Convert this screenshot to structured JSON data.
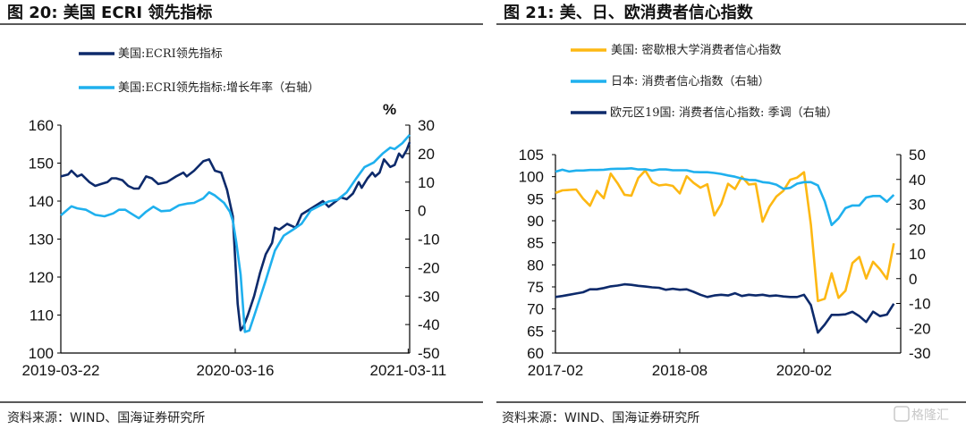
{
  "watermark": {
    "text": "格隆汇"
  },
  "chart_data": [
    {
      "type": "line",
      "title": "图 20:  美国 ECRI 领先指标",
      "source": "资料来源：WIND、国海证券研究所",
      "x_unit": "days since 2019-03-22",
      "xlim": [
        0,
        720
      ],
      "xticks": [
        {
          "x": 0,
          "label": "2019-03-22"
        },
        {
          "x": 360,
          "label": "2020-03-16"
        },
        {
          "x": 717,
          "label": "2021-03-11"
        }
      ],
      "ylim_left": [
        100,
        160
      ],
      "yticks_left": [
        "100",
        "110",
        "120",
        "130",
        "140",
        "150",
        "160"
      ],
      "ylim_right": [
        -50,
        30
      ],
      "yticks_right": [
        "-50",
        "-40",
        "-30",
        "-20",
        "-10",
        "0",
        "10",
        "20",
        "30"
      ],
      "right_axis_unit": "%",
      "legend_position": "top-left",
      "series": [
        {
          "name": "美国:ECRI领先指标",
          "axis": "left",
          "color": "#0d2a6b",
          "points": [
            [
              0,
              146.5
            ],
            [
              15,
              147
            ],
            [
              22,
              148
            ],
            [
              34,
              146.5
            ],
            [
              43,
              147
            ],
            [
              59,
              145
            ],
            [
              71,
              144
            ],
            [
              83,
              144.5
            ],
            [
              96,
              145
            ],
            [
              105,
              146
            ],
            [
              114,
              146
            ],
            [
              127,
              145.5
            ],
            [
              139,
              144
            ],
            [
              151,
              143.3
            ],
            [
              161,
              143.3
            ],
            [
              176,
              146.5
            ],
            [
              188,
              146
            ],
            [
              201,
              144.5
            ],
            [
              219,
              145
            ],
            [
              238,
              146.5
            ],
            [
              253,
              147.5
            ],
            [
              260,
              146.5
            ],
            [
              275,
              148
            ],
            [
              294,
              150.5
            ],
            [
              306,
              151
            ],
            [
              318,
              148
            ],
            [
              331,
              147.5
            ],
            [
              343,
              143
            ],
            [
              355,
              136
            ],
            [
              365,
              113
            ],
            [
              371,
              106
            ],
            [
              377,
              107
            ],
            [
              386,
              110
            ],
            [
              399,
              115
            ],
            [
              411,
              121
            ],
            [
              423,
              126
            ],
            [
              436,
              129
            ],
            [
              442,
              133
            ],
            [
              451,
              132.5
            ],
            [
              467,
              134
            ],
            [
              485,
              133
            ],
            [
              497,
              136.5
            ],
            [
              516,
              138
            ],
            [
              541,
              140
            ],
            [
              553,
              138.5
            ],
            [
              578,
              141
            ],
            [
              590,
              140.5
            ],
            [
              603,
              142
            ],
            [
              615,
              145
            ],
            [
              621,
              143.5
            ],
            [
              633,
              146
            ],
            [
              643,
              147.5
            ],
            [
              649,
              146.5
            ],
            [
              658,
              147.5
            ],
            [
              667,
              151
            ],
            [
              680,
              149
            ],
            [
              689,
              149.5
            ],
            [
              698,
              152.5
            ],
            [
              705,
              151.5
            ],
            [
              714,
              153.5
            ],
            [
              720,
              155.5
            ]
          ]
        },
        {
          "name": "美国:ECRI领先指标:增长年率（右轴）",
          "axis": "right",
          "color": "#1fb0ee",
          "points": [
            [
              0,
              -1.7
            ],
            [
              22,
              1.5
            ],
            [
              34,
              0.8
            ],
            [
              52,
              0.3
            ],
            [
              71,
              -1.5
            ],
            [
              90,
              -2
            ],
            [
              108,
              -1
            ],
            [
              120,
              0.3
            ],
            [
              133,
              0.3
            ],
            [
              145,
              -1
            ],
            [
              161,
              -2.7
            ],
            [
              176,
              -0.4
            ],
            [
              191,
              1.4
            ],
            [
              207,
              -0.2
            ],
            [
              225,
              0
            ],
            [
              244,
              1.9
            ],
            [
              262,
              2.5
            ],
            [
              275,
              2.7
            ],
            [
              294,
              4.3
            ],
            [
              306,
              6.4
            ],
            [
              318,
              5.3
            ],
            [
              337,
              2.7
            ],
            [
              349,
              -0.4
            ],
            [
              355,
              -3.6
            ],
            [
              362,
              -11
            ],
            [
              371,
              -22.4
            ],
            [
              380,
              -42.6
            ],
            [
              389,
              -42.1
            ],
            [
              399,
              -37
            ],
            [
              411,
              -30.8
            ],
            [
              423,
              -24.5
            ],
            [
              442,
              -14
            ],
            [
              460,
              -8.8
            ],
            [
              479,
              -6.7
            ],
            [
              497,
              -4.6
            ],
            [
              516,
              0.1
            ],
            [
              534,
              1.7
            ],
            [
              553,
              3.2
            ],
            [
              571,
              3.8
            ],
            [
              590,
              6.4
            ],
            [
              609,
              11.1
            ],
            [
              627,
              15.3
            ],
            [
              646,
              16.9
            ],
            [
              664,
              20
            ],
            [
              680,
              22.1
            ],
            [
              689,
              21.6
            ],
            [
              705,
              23.7
            ],
            [
              720,
              26.6
            ]
          ]
        }
      ]
    },
    {
      "type": "line",
      "title": "图 21:  美、日、欧消费者信心指数",
      "source": "资料来源：WIND、国海证券研究所",
      "x_unit": "months since 2017-02",
      "xlim": [
        0,
        50
      ],
      "xticks": [
        {
          "x": 0,
          "label": "2017-02"
        },
        {
          "x": 18,
          "label": "2018-08"
        },
        {
          "x": 36,
          "label": "2020-02"
        }
      ],
      "ylim_left": [
        60,
        105
      ],
      "yticks_left": [
        "60",
        "65",
        "70",
        "75",
        "80",
        "85",
        "90",
        "95",
        "100",
        "105"
      ],
      "ylim_right": [
        -30,
        50
      ],
      "yticks_right": [
        "-30",
        "-20",
        "-10",
        "0",
        "10",
        "20",
        "30",
        "40",
        "50"
      ],
      "legend_position": "top-left",
      "series": [
        {
          "name": "美国: 密歇根大学消费者信心指数",
          "axis": "left",
          "color": "#fdb813",
          "values": [
            96.3,
            96.9,
            97.0,
            97.1,
            95.0,
            93.4,
            96.8,
            95.1,
            100.7,
            98.5,
            95.9,
            95.7,
            99.7,
            101.4,
            98.8,
            98.0,
            98.2,
            97.9,
            96.2,
            100.1,
            98.6,
            97.5,
            98.3,
            91.2,
            93.8,
            98.4,
            97.2,
            100.0,
            98.2,
            98.4,
            89.8,
            93.2,
            95.5,
            96.8,
            99.3,
            99.8,
            101.0,
            89.1,
            71.8,
            72.3,
            78.1,
            72.5,
            74.1,
            80.4,
            81.8,
            76.9,
            80.7,
            79.0,
            76.8,
            84.9
          ]
        },
        {
          "name": "日本: 消费者信心指数（右轴）",
          "axis": "right",
          "color": "#1fb0ee",
          "values": [
            43.1,
            43.9,
            43.2,
            43.6,
            43.6,
            43.8,
            43.8,
            43.9,
            44.2,
            44.3,
            44.3,
            44.5,
            44.0,
            44.1,
            43.6,
            44.0,
            44.0,
            43.7,
            43.7,
            43.7,
            43.0,
            42.9,
            42.9,
            42.6,
            42.2,
            41.6,
            41.1,
            40.3,
            39.8,
            39.7,
            38.9,
            38.6,
            37.9,
            36.2,
            36.6,
            38.3,
            38.9,
            38.9,
            37.6,
            31.1,
            21.6,
            24.3,
            28.4,
            29.5,
            29.5,
            32.7,
            33.3,
            33.3,
            31.0,
            33.8
          ]
        },
        {
          "name": "欧元区19国: 消费者信心指数: 季调（右轴）",
          "axis": "right",
          "color": "#0d2a6b",
          "values": [
            -7.4,
            -7.0,
            -6.5,
            -6.0,
            -5.5,
            -4.3,
            -4.3,
            -3.8,
            -3.1,
            -2.8,
            -2.3,
            -2.5,
            -2.9,
            -3.2,
            -3.5,
            -3.7,
            -4.5,
            -4.1,
            -4.5,
            -4.3,
            -5.3,
            -6.5,
            -7.4,
            -6.8,
            -6.5,
            -6.8,
            -5.9,
            -7.0,
            -6.5,
            -6.8,
            -6.5,
            -7.0,
            -6.8,
            -7.2,
            -7.4,
            -7.4,
            -6.5,
            -10.7,
            -21.8,
            -18.5,
            -14.6,
            -14.6,
            -14.4,
            -13.4,
            -15.1,
            -17.5,
            -13.3,
            -15.1,
            -14.5,
            -10.1
          ]
        }
      ]
    }
  ]
}
